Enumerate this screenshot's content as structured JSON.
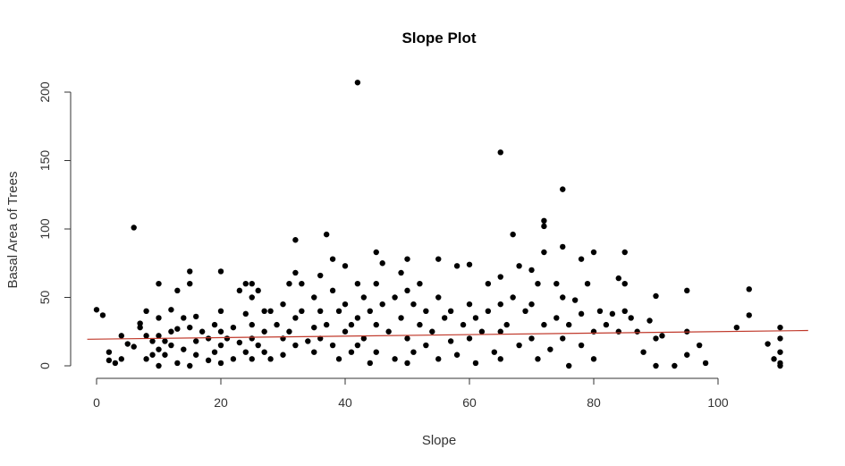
{
  "chart_data": {
    "type": "scatter",
    "title": "Slope Plot",
    "xlabel": "Slope",
    "ylabel": "Basal Area of Trees",
    "xlim": [
      0,
      110
    ],
    "ylim": [
      0,
      210
    ],
    "x_ticks": [
      0,
      20,
      40,
      60,
      80,
      100
    ],
    "y_ticks": [
      0,
      50,
      100,
      150,
      200
    ],
    "point_color": "#000000",
    "regression_line": {
      "color": "#c0392b",
      "intercept": 19.5,
      "slope": 0.055
    },
    "points": [
      [
        0,
        41
      ],
      [
        1,
        37
      ],
      [
        2,
        10
      ],
      [
        2,
        4
      ],
      [
        3,
        2
      ],
      [
        4,
        22
      ],
      [
        4,
        5
      ],
      [
        5,
        16
      ],
      [
        6,
        14
      ],
      [
        6,
        101
      ],
      [
        7,
        31
      ],
      [
        7,
        28
      ],
      [
        8,
        22
      ],
      [
        8,
        40
      ],
      [
        8,
        5
      ],
      [
        9,
        18
      ],
      [
        9,
        8
      ],
      [
        10,
        60
      ],
      [
        10,
        35
      ],
      [
        10,
        22
      ],
      [
        10,
        12
      ],
      [
        10,
        0
      ],
      [
        11,
        18
      ],
      [
        11,
        8
      ],
      [
        12,
        25
      ],
      [
        12,
        41
      ],
      [
        12,
        15
      ],
      [
        13,
        55
      ],
      [
        13,
        27
      ],
      [
        13,
        2
      ],
      [
        14,
        35
      ],
      [
        14,
        12
      ],
      [
        15,
        69
      ],
      [
        15,
        60
      ],
      [
        15,
        28
      ],
      [
        15,
        0
      ],
      [
        16,
        36
      ],
      [
        16,
        18
      ],
      [
        16,
        8
      ],
      [
        17,
        25
      ],
      [
        18,
        20
      ],
      [
        18,
        4
      ],
      [
        19,
        30
      ],
      [
        19,
        10
      ],
      [
        20,
        69
      ],
      [
        20,
        40
      ],
      [
        20,
        25
      ],
      [
        20,
        15
      ],
      [
        20,
        2
      ],
      [
        21,
        20
      ],
      [
        22,
        28
      ],
      [
        22,
        5
      ],
      [
        23,
        55
      ],
      [
        23,
        17
      ],
      [
        24,
        60
      ],
      [
        24,
        38
      ],
      [
        24,
        10
      ],
      [
        25,
        60
      ],
      [
        25,
        50
      ],
      [
        25,
        30
      ],
      [
        25,
        20
      ],
      [
        25,
        5
      ],
      [
        26,
        55
      ],
      [
        26,
        15
      ],
      [
        27,
        40
      ],
      [
        27,
        25
      ],
      [
        27,
        10
      ],
      [
        28,
        40
      ],
      [
        28,
        5
      ],
      [
        29,
        30
      ],
      [
        30,
        45
      ],
      [
        30,
        20
      ],
      [
        30,
        8
      ],
      [
        31,
        60
      ],
      [
        31,
        25
      ],
      [
        32,
        92
      ],
      [
        32,
        68
      ],
      [
        32,
        35
      ],
      [
        32,
        15
      ],
      [
        33,
        60
      ],
      [
        33,
        40
      ],
      [
        34,
        18
      ],
      [
        35,
        50
      ],
      [
        35,
        28
      ],
      [
        35,
        10
      ],
      [
        36,
        66
      ],
      [
        36,
        40
      ],
      [
        36,
        20
      ],
      [
        37,
        96
      ],
      [
        37,
        30
      ],
      [
        38,
        78
      ],
      [
        38,
        55
      ],
      [
        38,
        15
      ],
      [
        39,
        40
      ],
      [
        39,
        5
      ],
      [
        40,
        73
      ],
      [
        40,
        45
      ],
      [
        40,
        25
      ],
      [
        41,
        30
      ],
      [
        41,
        10
      ],
      [
        42,
        207
      ],
      [
        42,
        60
      ],
      [
        42,
        35
      ],
      [
        42,
        15
      ],
      [
        43,
        50
      ],
      [
        43,
        20
      ],
      [
        44,
        40
      ],
      [
        44,
        2
      ],
      [
        45,
        83
      ],
      [
        45,
        60
      ],
      [
        45,
        30
      ],
      [
        45,
        10
      ],
      [
        46,
        75
      ],
      [
        46,
        45
      ],
      [
        47,
        25
      ],
      [
        48,
        50
      ],
      [
        48,
        5
      ],
      [
        49,
        68
      ],
      [
        49,
        35
      ],
      [
        50,
        78
      ],
      [
        50,
        55
      ],
      [
        50,
        20
      ],
      [
        50,
        2
      ],
      [
        51,
        45
      ],
      [
        51,
        10
      ],
      [
        52,
        60
      ],
      [
        52,
        30
      ],
      [
        53,
        40
      ],
      [
        53,
        15
      ],
      [
        54,
        25
      ],
      [
        55,
        78
      ],
      [
        55,
        50
      ],
      [
        55,
        5
      ],
      [
        56,
        35
      ],
      [
        57,
        40
      ],
      [
        57,
        18
      ],
      [
        58,
        73
      ],
      [
        58,
        8
      ],
      [
        59,
        30
      ],
      [
        60,
        74
      ],
      [
        60,
        45
      ],
      [
        60,
        20
      ],
      [
        61,
        35
      ],
      [
        61,
        2
      ],
      [
        62,
        25
      ],
      [
        63,
        60
      ],
      [
        63,
        40
      ],
      [
        64,
        10
      ],
      [
        65,
        156
      ],
      [
        65,
        65
      ],
      [
        65,
        45
      ],
      [
        65,
        25
      ],
      [
        65,
        5
      ],
      [
        66,
        30
      ],
      [
        67,
        96
      ],
      [
        67,
        50
      ],
      [
        68,
        73
      ],
      [
        68,
        15
      ],
      [
        69,
        40
      ],
      [
        70,
        70
      ],
      [
        70,
        45
      ],
      [
        70,
        20
      ],
      [
        71,
        60
      ],
      [
        71,
        5
      ],
      [
        72,
        106
      ],
      [
        72,
        102
      ],
      [
        72,
        83
      ],
      [
        72,
        30
      ],
      [
        73,
        12
      ],
      [
        74,
        60
      ],
      [
        74,
        35
      ],
      [
        75,
        129
      ],
      [
        75,
        87
      ],
      [
        75,
        50
      ],
      [
        75,
        20
      ],
      [
        76,
        30
      ],
      [
        76,
        0
      ],
      [
        77,
        48
      ],
      [
        78,
        78
      ],
      [
        78,
        38
      ],
      [
        78,
        15
      ],
      [
        79,
        60
      ],
      [
        80,
        83
      ],
      [
        80,
        25
      ],
      [
        80,
        5
      ],
      [
        81,
        40
      ],
      [
        82,
        30
      ],
      [
        83,
        38
      ],
      [
        84,
        64
      ],
      [
        84,
        25
      ],
      [
        85,
        83
      ],
      [
        85,
        60
      ],
      [
        85,
        40
      ],
      [
        86,
        35
      ],
      [
        87,
        25
      ],
      [
        88,
        10
      ],
      [
        89,
        33
      ],
      [
        90,
        51
      ],
      [
        90,
        20
      ],
      [
        90,
        0
      ],
      [
        91,
        22
      ],
      [
        93,
        0
      ],
      [
        95,
        55
      ],
      [
        95,
        25
      ],
      [
        95,
        8
      ],
      [
        97,
        15
      ],
      [
        98,
        2
      ],
      [
        103,
        28
      ],
      [
        105,
        56
      ],
      [
        105,
        37
      ],
      [
        108,
        16
      ],
      [
        109,
        5
      ],
      [
        110,
        28
      ],
      [
        110,
        20
      ],
      [
        110,
        10
      ],
      [
        110,
        2
      ],
      [
        110,
        0
      ]
    ]
  }
}
